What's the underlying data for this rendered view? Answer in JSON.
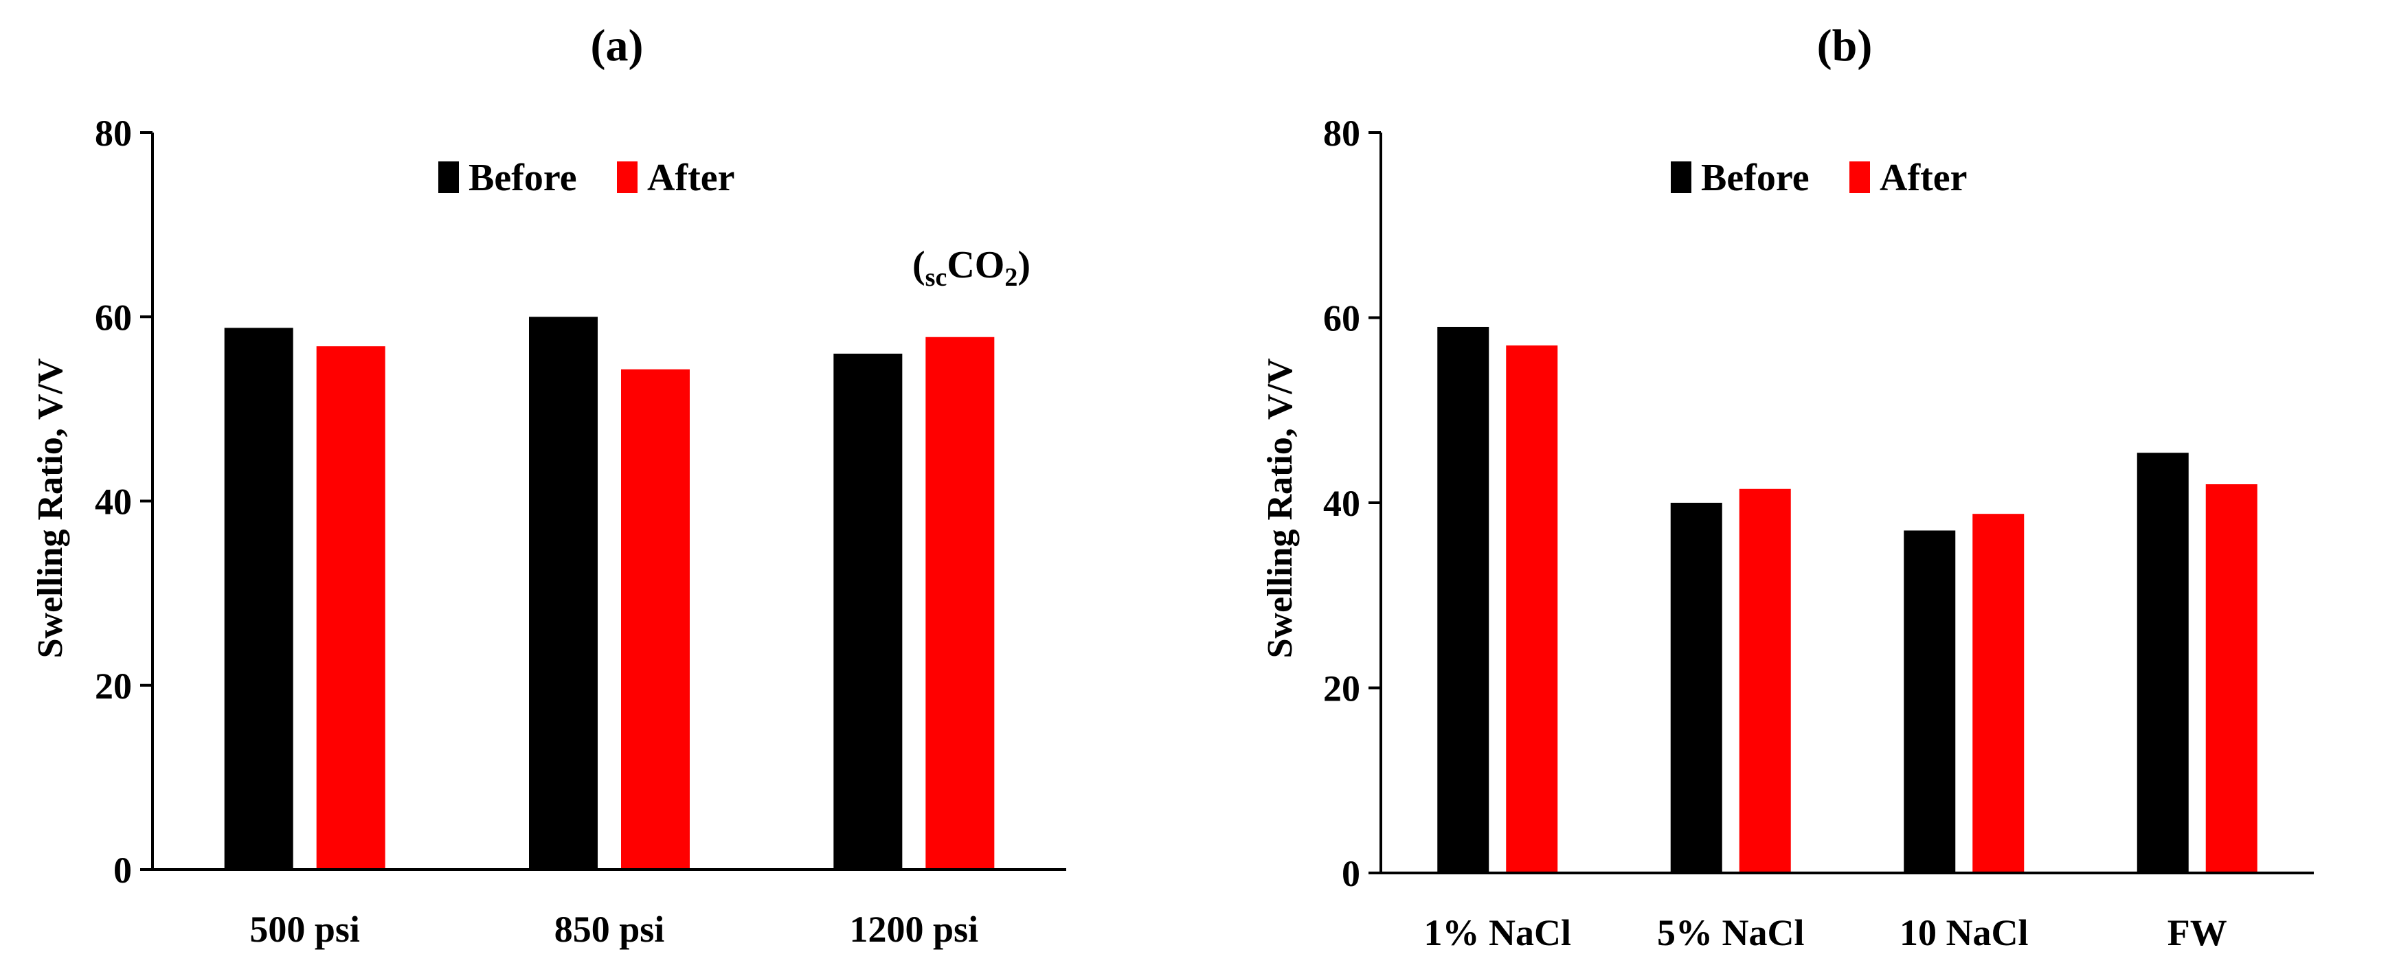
{
  "chart_data": [
    {
      "type": "bar",
      "title": "(a)",
      "categories": [
        "500 psi",
        "850 psi",
        "1200 psi"
      ],
      "series": [
        {
          "name": "Before",
          "values": [
            58.8,
            60.0,
            56.0
          ]
        },
        {
          "name": "After",
          "values": [
            56.8,
            54.3,
            57.8
          ]
        }
      ],
      "ylabel": "Swelling Ratio, V/V",
      "ylim": [
        0,
        80
      ],
      "yticks": [
        "0",
        "20",
        "40",
        "60",
        "80"
      ],
      "legend_position": "top-center",
      "grid": false,
      "annotation": {
        "open": "(",
        "sub": "sc",
        "main": "CO",
        "sub2": "2",
        "close": ")"
      }
    },
    {
      "type": "bar",
      "title": "(b)",
      "categories": [
        "1% NaCl",
        "5% NaCl",
        "10 NaCl",
        "FW"
      ],
      "series": [
        {
          "name": "Before",
          "values": [
            59.0,
            40.0,
            37.0,
            45.4
          ]
        },
        {
          "name": "After",
          "values": [
            57.0,
            41.5,
            38.8,
            42.0
          ]
        }
      ],
      "ylabel": "Swelling Ratio, V/V",
      "ylim": [
        0,
        80
      ],
      "yticks": [
        "0",
        "20",
        "40",
        "60",
        "80"
      ],
      "legend_position": "top-center",
      "grid": false
    }
  ],
  "colors": {
    "before": "#000000",
    "after": "#ff0000"
  }
}
